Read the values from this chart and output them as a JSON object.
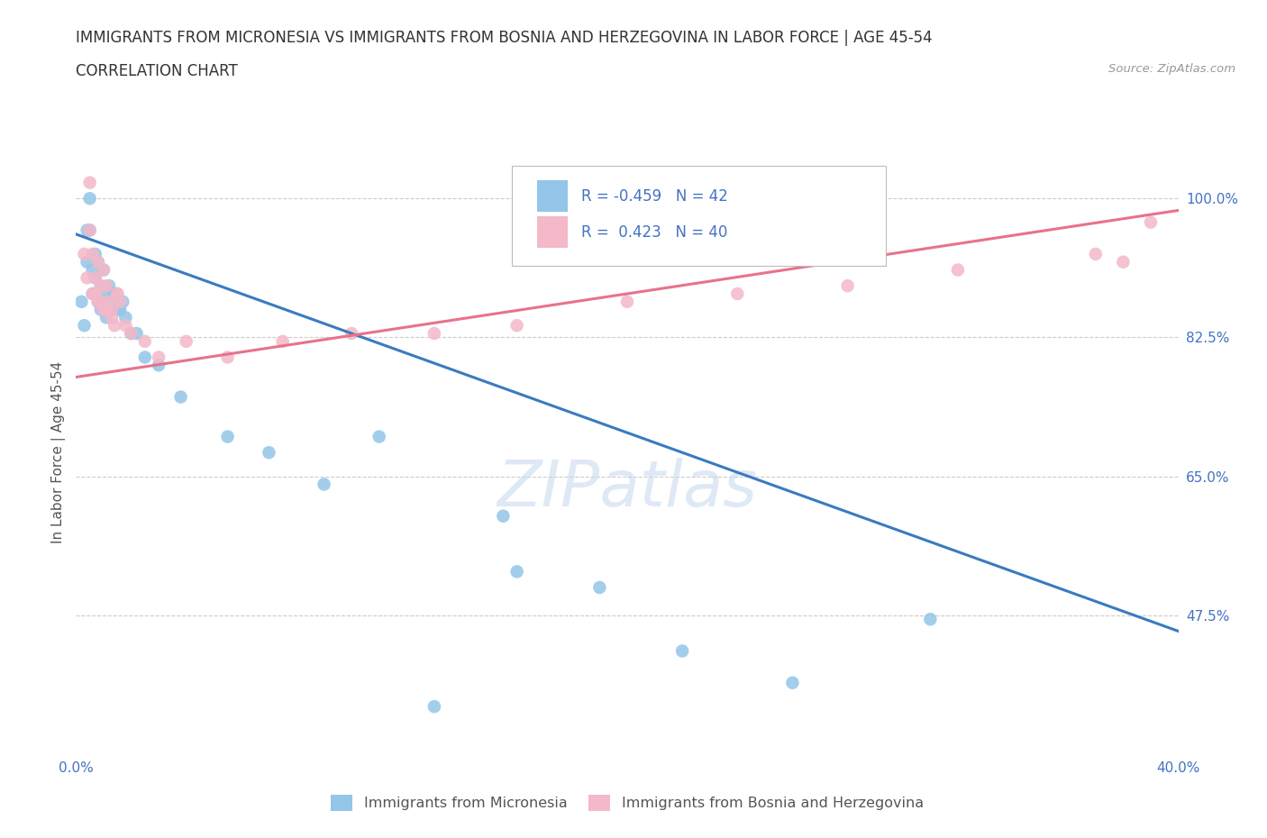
{
  "title": "IMMIGRANTS FROM MICRONESIA VS IMMIGRANTS FROM BOSNIA AND HERZEGOVINA IN LABOR FORCE | AGE 45-54",
  "subtitle": "CORRELATION CHART",
  "source": "Source: ZipAtlas.com",
  "ylabel": "In Labor Force | Age 45-54",
  "xlim": [
    0.0,
    0.4
  ],
  "ylim": [
    0.3,
    1.06
  ],
  "yticks": [
    0.475,
    0.65,
    0.825,
    1.0
  ],
  "ytick_labels": [
    "47.5%",
    "65.0%",
    "82.5%",
    "100.0%"
  ],
  "xticks": [
    0.0,
    0.1,
    0.2,
    0.3,
    0.4
  ],
  "xtick_labels": [
    "0.0%",
    "",
    "",
    "",
    "40.0%"
  ],
  "watermark": "ZIPatlas",
  "blue_scatter_x": [
    0.002,
    0.003,
    0.004,
    0.004,
    0.005,
    0.005,
    0.006,
    0.006,
    0.007,
    0.007,
    0.008,
    0.008,
    0.009,
    0.009,
    0.01,
    0.01,
    0.011,
    0.011,
    0.012,
    0.012,
    0.013,
    0.014,
    0.015,
    0.016,
    0.017,
    0.018,
    0.02,
    0.022,
    0.025,
    0.03,
    0.038,
    0.055,
    0.07,
    0.09,
    0.11,
    0.16,
    0.19,
    0.22,
    0.26,
    0.31,
    0.155,
    0.13
  ],
  "blue_scatter_y": [
    0.87,
    0.84,
    0.96,
    0.92,
    1.0,
    0.96,
    0.91,
    0.88,
    0.93,
    0.9,
    0.92,
    0.87,
    0.89,
    0.86,
    0.91,
    0.87,
    0.88,
    0.85,
    0.89,
    0.86,
    0.87,
    0.88,
    0.86,
    0.86,
    0.87,
    0.85,
    0.83,
    0.83,
    0.8,
    0.79,
    0.75,
    0.7,
    0.68,
    0.64,
    0.7,
    0.53,
    0.51,
    0.43,
    0.39,
    0.47,
    0.6,
    0.36
  ],
  "pink_scatter_x": [
    0.003,
    0.004,
    0.005,
    0.005,
    0.006,
    0.006,
    0.007,
    0.008,
    0.008,
    0.009,
    0.01,
    0.01,
    0.011,
    0.012,
    0.013,
    0.014,
    0.015,
    0.016,
    0.018,
    0.02,
    0.025,
    0.03,
    0.04,
    0.055,
    0.075,
    0.1,
    0.13,
    0.16,
    0.2,
    0.24,
    0.28,
    0.32,
    0.37,
    0.38,
    0.007,
    0.009,
    0.011,
    0.013,
    0.015,
    0.39
  ],
  "pink_scatter_y": [
    0.93,
    0.9,
    1.02,
    0.96,
    0.93,
    0.88,
    0.9,
    0.92,
    0.87,
    0.89,
    0.91,
    0.86,
    0.89,
    0.87,
    0.86,
    0.84,
    0.88,
    0.87,
    0.84,
    0.83,
    0.82,
    0.8,
    0.82,
    0.8,
    0.82,
    0.83,
    0.83,
    0.84,
    0.87,
    0.88,
    0.89,
    0.91,
    0.93,
    0.92,
    0.88,
    0.87,
    0.86,
    0.85,
    0.88,
    0.97
  ],
  "blue_line_x": [
    0.0,
    0.4
  ],
  "blue_line_y": [
    0.955,
    0.455
  ],
  "pink_line_x": [
    0.0,
    0.4
  ],
  "pink_line_y": [
    0.775,
    0.985
  ],
  "blue_color": "#93c6e8",
  "pink_color": "#f4b8c8",
  "blue_line_color": "#3a7bbf",
  "pink_line_color": "#e8728a",
  "legend_blue_R": "-0.459",
  "legend_blue_N": "42",
  "legend_pink_R": "0.423",
  "legend_pink_N": "40",
  "legend_label_blue": "Immigrants from Micronesia",
  "legend_label_pink": "Immigrants from Bosnia and Herzegovina",
  "title_fontsize": 12,
  "subtitle_fontsize": 12,
  "axis_label_fontsize": 11,
  "tick_fontsize": 11,
  "grid_color": "#cccccc",
  "background_color": "#ffffff",
  "plot_background": "#ffffff",
  "tick_color": "#4472c4",
  "legend_text_color": "#4472c4"
}
